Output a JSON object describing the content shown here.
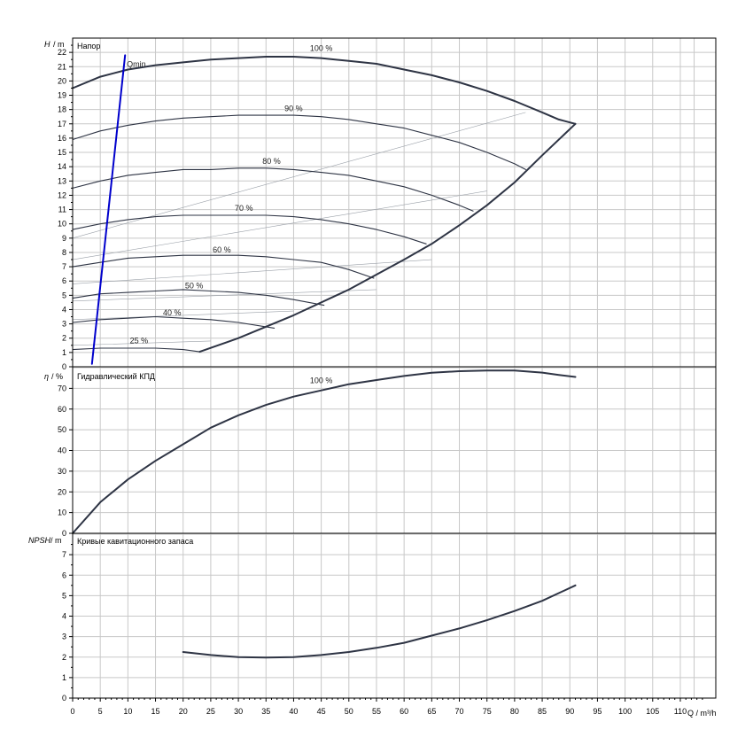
{
  "chart_data": [
    {
      "type": "line",
      "panel": "head",
      "title": "Напор",
      "ylabel": "H",
      "yunit": "/ m",
      "xlim": [
        0,
        115
      ],
      "ylim": [
        0,
        23
      ],
      "x_ticks": [
        0,
        5,
        10,
        15,
        20,
        25,
        30,
        35,
        40,
        45,
        50,
        55,
        60,
        65,
        70,
        75,
        80,
        85,
        90,
        95,
        100,
        105,
        110
      ],
      "y_ticks": [
        0,
        1,
        2,
        3,
        4,
        5,
        6,
        7,
        8,
        9,
        10,
        11,
        12,
        13,
        14,
        15,
        16,
        17,
        18,
        19,
        20,
        21,
        22
      ],
      "grid": true,
      "series": [
        {
          "name": "100 %",
          "label_at": [
            45,
            22.1
          ],
          "x": [
            0,
            5,
            10,
            15,
            20,
            25,
            30,
            35,
            40,
            45,
            50,
            55,
            60,
            65,
            70,
            75,
            80,
            85,
            88,
            91
          ],
          "y": [
            19.5,
            20.3,
            20.8,
            21.1,
            21.3,
            21.5,
            21.6,
            21.7,
            21.7,
            21.6,
            21.4,
            21.2,
            20.8,
            20.4,
            19.9,
            19.3,
            18.6,
            17.8,
            17.3,
            17.0
          ]
        },
        {
          "name": "90 %",
          "label_at": [
            40,
            17.9
          ],
          "x": [
            0,
            5,
            10,
            15,
            20,
            25,
            30,
            35,
            40,
            45,
            50,
            55,
            60,
            65,
            70,
            75,
            80,
            82
          ],
          "y": [
            15.9,
            16.5,
            16.9,
            17.2,
            17.4,
            17.5,
            17.6,
            17.6,
            17.6,
            17.5,
            17.3,
            17.0,
            16.7,
            16.2,
            15.7,
            15.0,
            14.2,
            13.8
          ]
        },
        {
          "name": "80 %",
          "label_at": [
            36,
            14.2
          ],
          "x": [
            0,
            5,
            10,
            15,
            20,
            25,
            30,
            35,
            40,
            45,
            50,
            55,
            60,
            65,
            70,
            72.5
          ],
          "y": [
            12.5,
            13.0,
            13.4,
            13.6,
            13.8,
            13.8,
            13.9,
            13.9,
            13.8,
            13.6,
            13.4,
            13.0,
            12.6,
            12.0,
            11.3,
            10.9
          ]
        },
        {
          "name": "70 %",
          "label_at": [
            31,
            10.9
          ],
          "x": [
            0,
            5,
            10,
            15,
            20,
            25,
            30,
            35,
            40,
            45,
            50,
            55,
            60,
            64
          ],
          "y": [
            9.6,
            10.0,
            10.3,
            10.5,
            10.6,
            10.6,
            10.6,
            10.6,
            10.5,
            10.3,
            10.0,
            9.6,
            9.1,
            8.6
          ]
        },
        {
          "name": "60 %",
          "label_at": [
            27,
            8.0
          ],
          "x": [
            0,
            5,
            10,
            15,
            20,
            25,
            30,
            35,
            40,
            45,
            50,
            54.5
          ],
          "y": [
            7.0,
            7.3,
            7.6,
            7.7,
            7.8,
            7.8,
            7.8,
            7.7,
            7.5,
            7.3,
            6.8,
            6.2
          ]
        },
        {
          "name": "50 %",
          "label_at": [
            22,
            5.5
          ],
          "x": [
            0,
            5,
            10,
            15,
            20,
            25,
            30,
            35,
            40,
            45.5
          ],
          "y": [
            4.8,
            5.1,
            5.2,
            5.3,
            5.4,
            5.3,
            5.2,
            5.0,
            4.7,
            4.3
          ]
        },
        {
          "name": "40 %",
          "label_at": [
            18,
            3.6
          ],
          "x": [
            0,
            5,
            10,
            15,
            20,
            25,
            30,
            36.5
          ],
          "y": [
            3.1,
            3.3,
            3.4,
            3.5,
            3.4,
            3.3,
            3.1,
            2.7
          ]
        },
        {
          "name": "25 %",
          "label_at": [
            12,
            1.65
          ],
          "x": [
            0,
            5,
            10,
            15,
            20,
            23
          ],
          "y": [
            1.2,
            1.3,
            1.3,
            1.3,
            1.2,
            1.05
          ]
        },
        {
          "name": "",
          "x": [
            23,
            30,
            40,
            50,
            60,
            65,
            70,
            75,
            80,
            85,
            91
          ],
          "y": [
            1.05,
            2.0,
            3.6,
            5.4,
            7.5,
            8.6,
            9.9,
            11.3,
            12.9,
            14.8,
            17.0
          ]
        },
        {
          "name": "Qmin",
          "label_at": [
            9.8,
            21.0
          ],
          "x": [
            3.5,
            9.5
          ],
          "y": [
            0.2,
            21.8
          ]
        }
      ]
    },
    {
      "type": "line",
      "panel": "efficiency",
      "title": "Гидравлический КПД",
      "ylabel": "η",
      "yunit": "/ %",
      "xlim": [
        0,
        115
      ],
      "ylim": [
        0,
        80
      ],
      "y_ticks": [
        0,
        10,
        20,
        30,
        40,
        50,
        60,
        70
      ],
      "grid": true,
      "series": [
        {
          "name": "100 %",
          "label_at": [
            45,
            72.5
          ],
          "x": [
            0,
            5,
            10,
            15,
            20,
            25,
            30,
            35,
            40,
            45,
            50,
            55,
            60,
            65,
            70,
            75,
            80,
            85,
            88,
            91
          ],
          "y": [
            0,
            15,
            26,
            35,
            43,
            51,
            57,
            62,
            66,
            69,
            72,
            74,
            76,
            77.5,
            78.3,
            78.6,
            78.6,
            77.6,
            76.5,
            75.5
          ]
        }
      ]
    },
    {
      "type": "line",
      "panel": "npsh",
      "title": "Кривые кавитационного запаса",
      "ylabel": "NPSH",
      "yunit": "/ m",
      "xlabel": "Q / m³/h",
      "xlim": [
        0,
        115
      ],
      "ylim": [
        0,
        8
      ],
      "y_ticks": [
        0,
        1,
        2,
        3,
        4,
        5,
        6,
        7
      ],
      "x_ticks": [
        0,
        5,
        10,
        15,
        20,
        25,
        30,
        35,
        40,
        45,
        50,
        55,
        60,
        65,
        70,
        75,
        80,
        85,
        90,
        95,
        100,
        105,
        110
      ],
      "grid": true,
      "series": [
        {
          "name": "",
          "x": [
            20,
            25,
            30,
            35,
            40,
            45,
            50,
            55,
            60,
            65,
            70,
            75,
            80,
            85,
            91
          ],
          "y": [
            2.25,
            2.1,
            2.0,
            1.98,
            2.0,
            2.1,
            2.25,
            2.45,
            2.7,
            3.05,
            3.4,
            3.8,
            4.25,
            4.75,
            5.5
          ]
        }
      ]
    }
  ],
  "colors": {
    "curve": "#2e3444",
    "qmin": "#0000cc",
    "grid": "#c8c8c8",
    "axis": "#000000",
    "eff_line": "#9aa0a8"
  }
}
